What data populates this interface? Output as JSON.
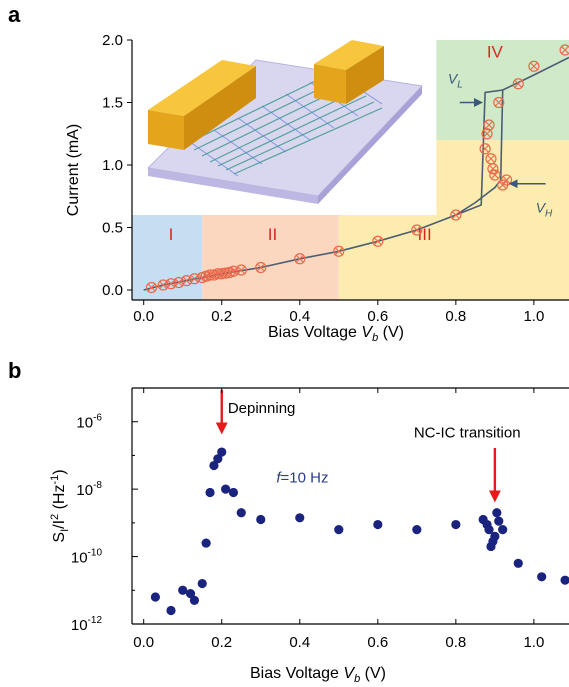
{
  "panels": {
    "a_label": "a",
    "b_label": "b"
  },
  "colors": {
    "region_I": "#c5def2",
    "region_II": "#fbd7c0",
    "region_III": "#fcecb0",
    "region_IV": "#cfe9c9",
    "marker": "#ea6a4c",
    "curve": "#4b5e74",
    "arrow_dark": "#3c5a78",
    "dot": "#1a237e",
    "arrow_red": "#e8191a",
    "annotation_blue": "#273d8c"
  },
  "inset": {
    "description_icon": "device-schematic-image"
  },
  "chart_data": [
    {
      "type": "scatter",
      "panel": "a",
      "xlabel": "Bias Voltage V",
      "xlabel_sub": "b",
      "xlabel_unit": "(V)",
      "ylabel": "Current (mA)",
      "xlim": [
        -0.03,
        1.09
      ],
      "ylim": [
        -0.08,
        2.0
      ],
      "xticks": [
        0.0,
        0.2,
        0.4,
        0.6,
        0.8,
        1.0
      ],
      "xtick_labels": [
        "0.0",
        "0.2",
        "0.4",
        "0.6",
        "0.8",
        "1.0"
      ],
      "yticks": [
        0.0,
        0.5,
        1.0,
        1.5,
        2.0
      ],
      "ytick_labels": [
        "0.0",
        "0.5",
        "1.0",
        "1.5",
        "2.0"
      ],
      "regions": [
        {
          "label": "I",
          "x0": -0.03,
          "x1": 0.15,
          "y0": -0.08,
          "y1": 0.6,
          "color_key": "region_I"
        },
        {
          "label": "II",
          "x0": 0.15,
          "x1": 0.5,
          "y0": -0.08,
          "y1": 0.6,
          "color_key": "region_II"
        },
        {
          "label": "III",
          "x0": 0.5,
          "x1": 1.09,
          "y0": -0.08,
          "y1": 0.6,
          "color_key": "region_III"
        },
        {
          "label": "",
          "x0": 0.75,
          "x1": 1.09,
          "y0": 0.6,
          "y1": 1.2,
          "color_key": "region_III"
        },
        {
          "label": "IV",
          "x0": 0.75,
          "x1": 1.09,
          "y0": 1.2,
          "y1": 2.0,
          "color_key": "region_IV"
        }
      ],
      "region_label_positions": [
        {
          "text": "I",
          "x": 0.07,
          "y": 0.4
        },
        {
          "text": "II",
          "x": 0.33,
          "y": 0.4
        },
        {
          "text": "III",
          "x": 0.72,
          "y": 0.4
        },
        {
          "text": "IV",
          "x": 0.9,
          "y": 1.86
        }
      ],
      "markers": {
        "x": [
          0.02,
          0.05,
          0.07,
          0.09,
          0.11,
          0.13,
          0.15,
          0.16,
          0.17,
          0.18,
          0.19,
          0.2,
          0.21,
          0.22,
          0.23,
          0.25,
          0.3,
          0.4,
          0.5,
          0.6,
          0.7,
          0.8,
          0.875,
          0.88,
          0.885,
          0.89,
          0.895,
          0.9,
          0.92,
          0.91,
          0.93,
          0.96,
          1.0,
          1.08
        ],
        "y": [
          0.02,
          0.04,
          0.05,
          0.06,
          0.075,
          0.09,
          0.1,
          0.11,
          0.12,
          0.12,
          0.13,
          0.13,
          0.135,
          0.14,
          0.15,
          0.16,
          0.18,
          0.25,
          0.31,
          0.39,
          0.48,
          0.6,
          1.13,
          1.25,
          1.32,
          1.05,
          0.97,
          0.92,
          0.84,
          1.5,
          0.88,
          1.65,
          1.79,
          1.92
        ]
      },
      "curve_forward": {
        "x": [
          0.0,
          0.05,
          0.1,
          0.15,
          0.2,
          0.3,
          0.4,
          0.5,
          0.6,
          0.7,
          0.8,
          0.85,
          0.9,
          0.915,
          0.92,
          1.0,
          1.09
        ],
        "y": [
          0.0,
          0.04,
          0.07,
          0.1,
          0.13,
          0.18,
          0.25,
          0.31,
          0.39,
          0.48,
          0.6,
          0.7,
          0.82,
          0.88,
          1.6,
          1.72,
          1.86
        ]
      },
      "curve_backward": {
        "x": [
          0.92,
          0.875,
          0.865,
          0.8
        ],
        "y": [
          1.6,
          1.58,
          0.68,
          0.6
        ]
      },
      "annotations": [
        {
          "text": "V",
          "sub": "L",
          "x": 0.8,
          "y": 1.62
        },
        {
          "text": "V",
          "sub": "H",
          "x": 1.02,
          "y": 0.7
        }
      ]
    },
    {
      "type": "scatter",
      "panel": "b",
      "xlabel": "Bias Voltage V",
      "xlabel_sub": "b",
      "xlabel_unit": "(V)",
      "ylabel": "S",
      "ylabel_sub": "I",
      "ylabel_mid": "/I",
      "ylabel_sup": "2",
      "ylabel_unit": "(Hz",
      "ylabel_unit_sup": "-1",
      "ylabel_unit_end": ")",
      "y_scale": "log",
      "xlim": [
        -0.03,
        1.09
      ],
      "ylim_log10": [
        -12,
        -5
      ],
      "xticks": [
        0.0,
        0.2,
        0.4,
        0.6,
        0.8,
        1.0
      ],
      "xtick_labels": [
        "0.0",
        "0.2",
        "0.4",
        "0.6",
        "0.8",
        "1.0"
      ],
      "ytick_exponents": [
        -12,
        -10,
        -8,
        -6
      ],
      "ytick_base": "10",
      "ytick_exponent_labels": [
        "-12",
        "-10",
        "-8",
        "-6"
      ],
      "points": {
        "x": [
          0.03,
          0.07,
          0.1,
          0.12,
          0.13,
          0.15,
          0.16,
          0.17,
          0.18,
          0.19,
          0.2,
          0.21,
          0.23,
          0.25,
          0.3,
          0.4,
          0.5,
          0.6,
          0.7,
          0.8,
          0.87,
          0.88,
          0.885,
          0.89,
          0.895,
          0.9,
          0.905,
          0.91,
          0.92,
          0.96,
          1.02,
          1.08
        ],
        "log10_y": [
          -11.2,
          -11.6,
          -11.0,
          -11.1,
          -11.3,
          -10.8,
          -9.6,
          -8.1,
          -7.3,
          -7.1,
          -6.9,
          -8.0,
          -8.1,
          -8.7,
          -8.9,
          -8.85,
          -9.2,
          -9.05,
          -9.2,
          -9.05,
          -8.9,
          -9.05,
          -9.2,
          -9.7,
          -9.55,
          -9.4,
          -8.7,
          -8.95,
          -9.2,
          -10.2,
          -10.6,
          -10.7
        ]
      },
      "annotations": {
        "depinning": {
          "text": "Depinning",
          "arrow_x": 0.2,
          "text_x": 0.19,
          "log10_text_y": -5.5
        },
        "transition": {
          "text": "NC-IC transition",
          "arrow_x": 0.9,
          "text_x": 0.8,
          "log10_text_y": -6.7
        },
        "frequency": {
          "text_italic": "f",
          "text_rest": "=10 Hz",
          "x": 0.34,
          "log10_y": -7.8
        }
      }
    }
  ]
}
